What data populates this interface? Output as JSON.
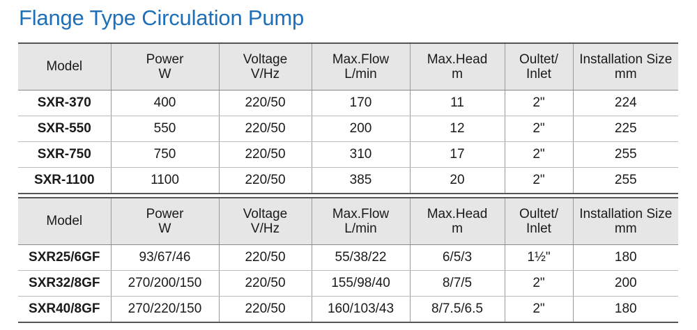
{
  "title": "Flange Type Circulation Pump",
  "tables": [
    {
      "headers": [
        {
          "line1": "Model",
          "line2": ""
        },
        {
          "line1": "Power",
          "line2": "W"
        },
        {
          "line1": "Voltage",
          "line2": "V/Hz"
        },
        {
          "line1": "Max.Flow",
          "line2": "L/min"
        },
        {
          "line1": "Max.Head",
          "line2": "m"
        },
        {
          "line1": "Oultet/",
          "line2": "Inlet"
        },
        {
          "line1": "Installation Size",
          "line2": "mm"
        }
      ],
      "rows": [
        [
          "SXR-370",
          "400",
          "220/50",
          "170",
          "11",
          "2\"",
          "224"
        ],
        [
          "SXR-550",
          "550",
          "220/50",
          "200",
          "12",
          "2\"",
          "225"
        ],
        [
          "SXR-750",
          "750",
          "220/50",
          "310",
          "17",
          "2\"",
          "255"
        ],
        [
          "SXR-1100",
          "1100",
          "220/50",
          "385",
          "20",
          "2\"",
          "255"
        ]
      ]
    },
    {
      "headers": [
        {
          "line1": "Model",
          "line2": ""
        },
        {
          "line1": "Power",
          "line2": "W"
        },
        {
          "line1": "Voltage",
          "line2": "V/Hz"
        },
        {
          "line1": "Max.Flow",
          "line2": "L/min"
        },
        {
          "line1": "Max.Head",
          "line2": "m"
        },
        {
          "line1": "Oultet/",
          "line2": "Inlet"
        },
        {
          "line1": "Installation Size",
          "line2": "mm"
        }
      ],
      "rows": [
        [
          "SXR25/6GF",
          "93/67/46",
          "220/50",
          "55/38/22",
          "6/5/3",
          "1½\"",
          "180"
        ],
        [
          "SXR32/8GF",
          "270/200/150",
          "220/50",
          "155/98/40",
          "8/7/5",
          "2\"",
          "200"
        ],
        [
          "SXR40/8GF",
          "270/220/150",
          "220/50",
          "160/103/43",
          "8/7.5/6.5",
          "2\"",
          "180"
        ]
      ]
    }
  ]
}
